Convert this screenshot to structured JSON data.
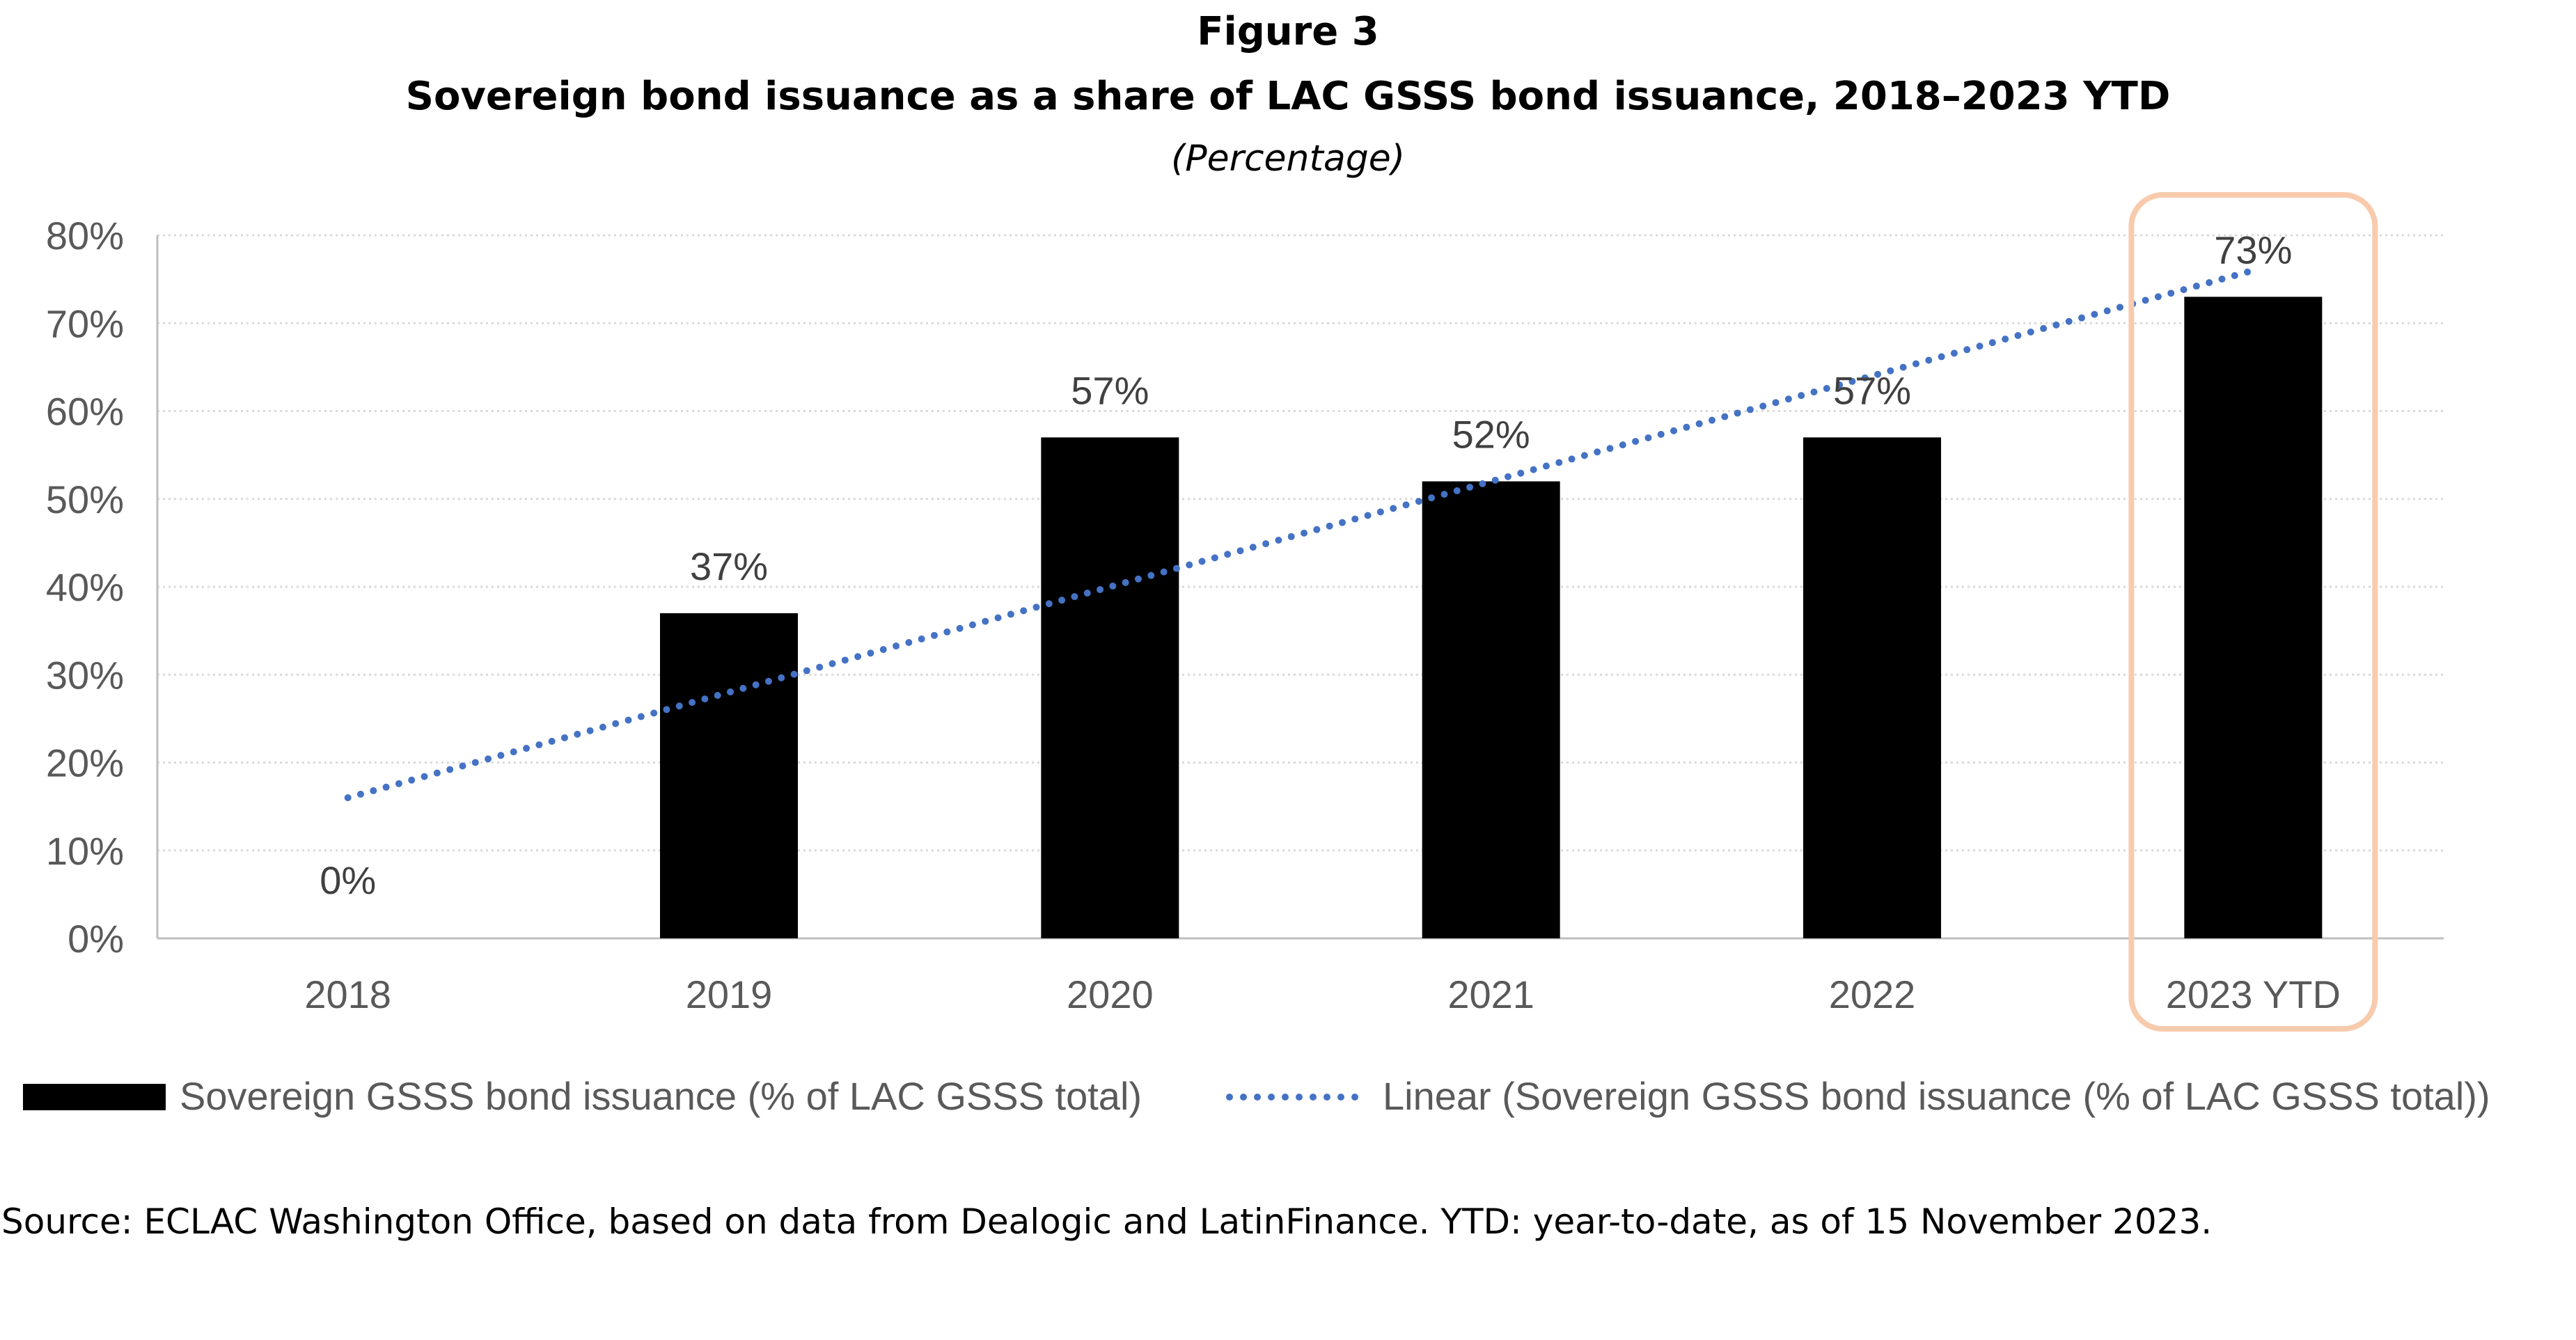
{
  "figure": {
    "number": "Figure 3",
    "title": "Sovereign bond issuance as a share of LAC GSSS bond issuance, 2018–2023 YTD",
    "subtitle": "(Percentage)"
  },
  "chart_data": {
    "type": "bar",
    "categories": [
      "2018",
      "2019",
      "2020",
      "2021",
      "2022",
      "2023 YTD"
    ],
    "series": [
      {
        "name": "Sovereign GSSS bond issuance (% of LAC GSSS total)",
        "values": [
          0,
          37,
          57,
          52,
          57,
          73
        ],
        "data_labels": [
          "0%",
          "37%",
          "57%",
          "52%",
          "57%",
          "73%"
        ],
        "color": "#000000"
      },
      {
        "name": "Linear (Sovereign GSSS bond issuance (% of LAC GSSS total))",
        "type": "trendline",
        "start": 16,
        "end": 76,
        "color": "#4472C4",
        "style": "dotted"
      }
    ],
    "yticks": [
      0,
      10,
      20,
      30,
      40,
      50,
      60,
      70,
      80
    ],
    "ytick_labels": [
      "0%",
      "10%",
      "20%",
      "30%",
      "40%",
      "50%",
      "60%",
      "70%",
      "80%"
    ],
    "ylim": [
      0,
      80
    ],
    "grid": true,
    "highlight_category": "2023 YTD",
    "highlight_color": "#F8CBAD",
    "legend_position": "bottom"
  },
  "source": "Source: ECLAC Washington Office, based on data from Dealogic and LatinFinance. YTD: year-to-date, as of 15 November 2023."
}
